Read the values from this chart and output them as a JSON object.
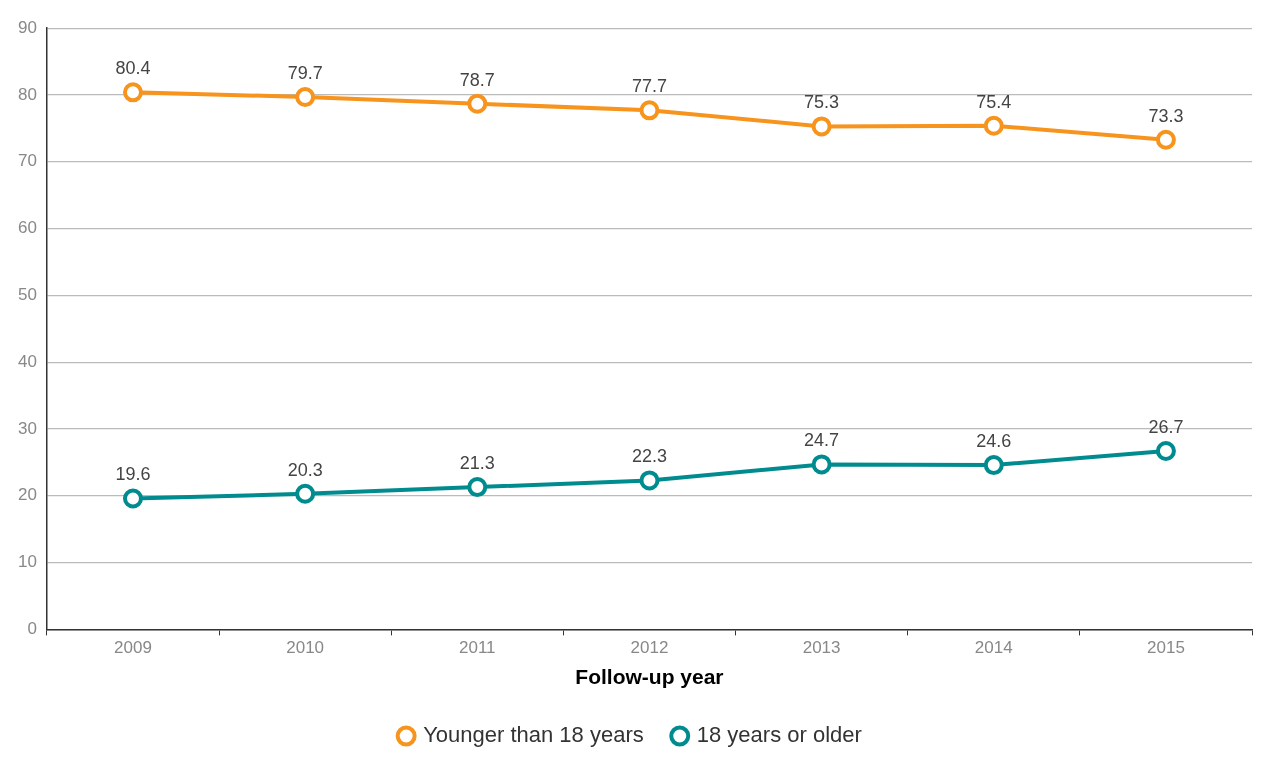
{
  "chart_data": {
    "type": "line",
    "xlabel": "Follow-up year",
    "categories": [
      "2009",
      "2010",
      "2011",
      "2012",
      "2013",
      "2014",
      "2015"
    ],
    "series": [
      {
        "name": "Younger than 18 years",
        "color": "#f7941d",
        "values": [
          80.4,
          79.7,
          78.7,
          77.7,
          75.3,
          75.4,
          73.3
        ]
      },
      {
        "name": "18 years or older",
        "color": "#008b8f",
        "values": [
          19.6,
          20.3,
          21.3,
          22.3,
          24.7,
          24.6,
          26.7
        ]
      }
    ],
    "ylim": [
      0,
      90
    ],
    "yticks": [
      0,
      10,
      20,
      30,
      40,
      50,
      60,
      70,
      80,
      90
    ],
    "grid": "y",
    "legend": "bottom",
    "marker": "circle",
    "line_style": "solid",
    "data_labels": true
  }
}
